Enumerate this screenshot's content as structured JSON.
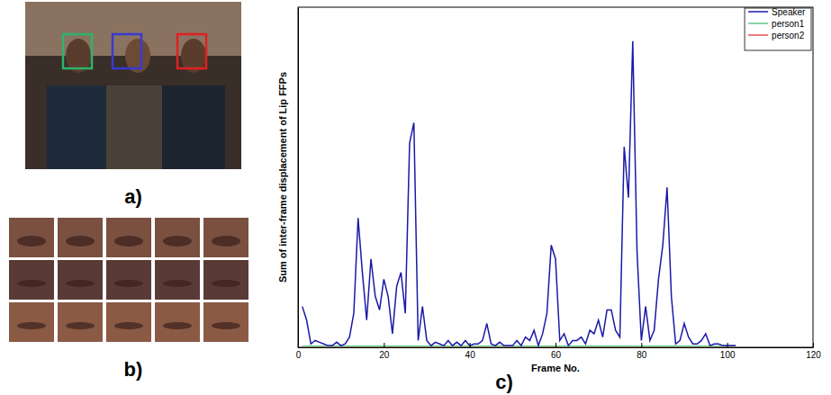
{
  "panel_labels": [
    "a)",
    "b)",
    "c)"
  ],
  "chart_data": {
    "type": "line",
    "x_label": "Frame No.",
    "y_label": "Sum of inter-frame displacement of Lip FFPs",
    "x": [
      1,
      2,
      3,
      4,
      5,
      6,
      7,
      8,
      9,
      10,
      11,
      12,
      13,
      14,
      15,
      16,
      17,
      18,
      19,
      20,
      21,
      22,
      23,
      24,
      25,
      26,
      27,
      28,
      29,
      30,
      31,
      32,
      33,
      34,
      35,
      36,
      37,
      38,
      39,
      40,
      41,
      42,
      43,
      44,
      45,
      46,
      47,
      48,
      49,
      50,
      51,
      52,
      53,
      54,
      55,
      56,
      57,
      58,
      59,
      60,
      61,
      62,
      63,
      64,
      65,
      66,
      67,
      68,
      69,
      70,
      71,
      72,
      73,
      74,
      75,
      76,
      77,
      78,
      79,
      80,
      81,
      82,
      83,
      84,
      85,
      86,
      87,
      88,
      89,
      90,
      91,
      92,
      93,
      94,
      95,
      96,
      97,
      98,
      99,
      100,
      101,
      102
    ],
    "series": [
      {
        "name": "Speaker",
        "color": "#1a1aa8",
        "values": [
          12,
          8,
          1,
          2,
          1.5,
          1,
          0.5,
          0.5,
          1.5,
          0.5,
          1,
          3,
          10,
          38,
          22,
          8,
          26,
          15,
          11,
          20,
          15,
          4,
          18,
          22,
          10,
          60,
          66,
          2,
          12,
          2,
          0.5,
          1.5,
          1,
          0.5,
          2,
          0.5,
          1.5,
          0.5,
          2,
          0.5,
          1,
          1,
          2,
          7,
          1,
          0.5,
          1.5,
          0.5,
          0.5,
          0.5,
          2,
          0.5,
          3,
          2,
          5,
          0.5,
          4,
          10,
          30,
          26,
          2,
          4,
          0.5,
          2,
          2,
          3,
          1,
          5,
          4,
          8,
          3,
          11,
          11,
          5,
          3,
          59,
          44,
          90,
          28,
          2,
          12,
          2,
          5,
          20,
          30,
          47,
          15,
          1,
          2,
          7,
          3,
          1,
          1,
          2,
          4,
          0.5,
          1,
          1,
          0.5,
          0.5,
          0.5,
          0.5
        ]
      },
      {
        "name": "person1",
        "color": "#5fc98a",
        "values": [
          0.3,
          0.3,
          0.3,
          0.3,
          0.3,
          0.3,
          0.3,
          0.3,
          0.3,
          0.3,
          0.3,
          0.3,
          0.3,
          0.3,
          0.3,
          0.3,
          0.3,
          0.3,
          0.3,
          0.3,
          0.3,
          0.3,
          0.3,
          0.3,
          0.3,
          0.3,
          0.3,
          0.3,
          0.3,
          0.3,
          0.3,
          0.3,
          0.3,
          0.3,
          0.3,
          0.3,
          0.3,
          0.3,
          0.3,
          0.3,
          0.3,
          0.3,
          0.3,
          0.3,
          0.3,
          0.3,
          0.3,
          0.3,
          0.3,
          0.3,
          0.3,
          0.3,
          0.3,
          0.3,
          0.3,
          0.3,
          0.3,
          0.3,
          0.3,
          0.3,
          0.3,
          0.3,
          0.3,
          0.3,
          0.3,
          0.3,
          0.3,
          0.3,
          0.3,
          0.3,
          0.3,
          0.3,
          0.3,
          0.3,
          0.3,
          0.3,
          0.3,
          0.3,
          0.3,
          0.3,
          0.3,
          0.3,
          0.3,
          0.3,
          0.3,
          0.3,
          0.3,
          0.3,
          0.3,
          0.3,
          0.3,
          0.3,
          0.3,
          0.3,
          0.3,
          0.3,
          0.3,
          0.3,
          0.3,
          0.3,
          0.3,
          0.3
        ]
      },
      {
        "name": "person2",
        "color": "#e05050",
        "values": [
          0.2,
          0.2,
          0.2,
          0.2,
          0.2,
          0.2,
          0.2,
          0.2,
          0.2,
          0.2,
          0.2,
          0.2,
          0.2,
          0.2,
          0.2,
          0.2,
          0.2,
          0.2,
          0.2,
          0.2,
          0.2,
          0.2,
          0.2,
          0.2,
          0.2,
          0.2,
          0.2,
          0.2,
          0.2,
          0.2,
          0.2,
          0.2,
          0.2,
          0.2,
          0.2,
          0.2,
          0.2,
          0.2,
          0.2,
          0.2,
          0.2,
          0.2,
          0.2,
          0.2,
          0.2,
          0.2,
          0.2,
          0.2,
          0.2,
          0.2,
          0.2,
          0.2,
          0.2,
          0.2,
          0.2,
          0.2,
          0.2,
          0.2,
          0.2,
          0.2,
          0.2,
          0.2,
          0.2,
          0.2,
          0.2,
          0.2,
          0.2,
          0.2,
          0.2,
          0.2,
          0.2,
          0.2,
          0.2,
          0.2,
          0.2,
          0.2,
          0.2,
          0.2,
          0.2,
          0.2,
          0.2,
          0.2,
          0.2,
          0.2,
          0.2,
          0.2,
          0.2,
          0.2,
          0.2,
          0.2,
          0.2,
          0.2,
          0.2,
          0.2,
          0.2,
          0.2,
          0.2,
          0.2,
          0.2,
          0.2,
          0.2,
          0.2
        ]
      }
    ],
    "xlim": [
      0,
      120
    ],
    "xticks": [
      0,
      20,
      40,
      60,
      80,
      100,
      120
    ],
    "ylim": [
      0,
      100
    ],
    "tick_labels": "x",
    "grid": false,
    "legend": "upper right"
  }
}
